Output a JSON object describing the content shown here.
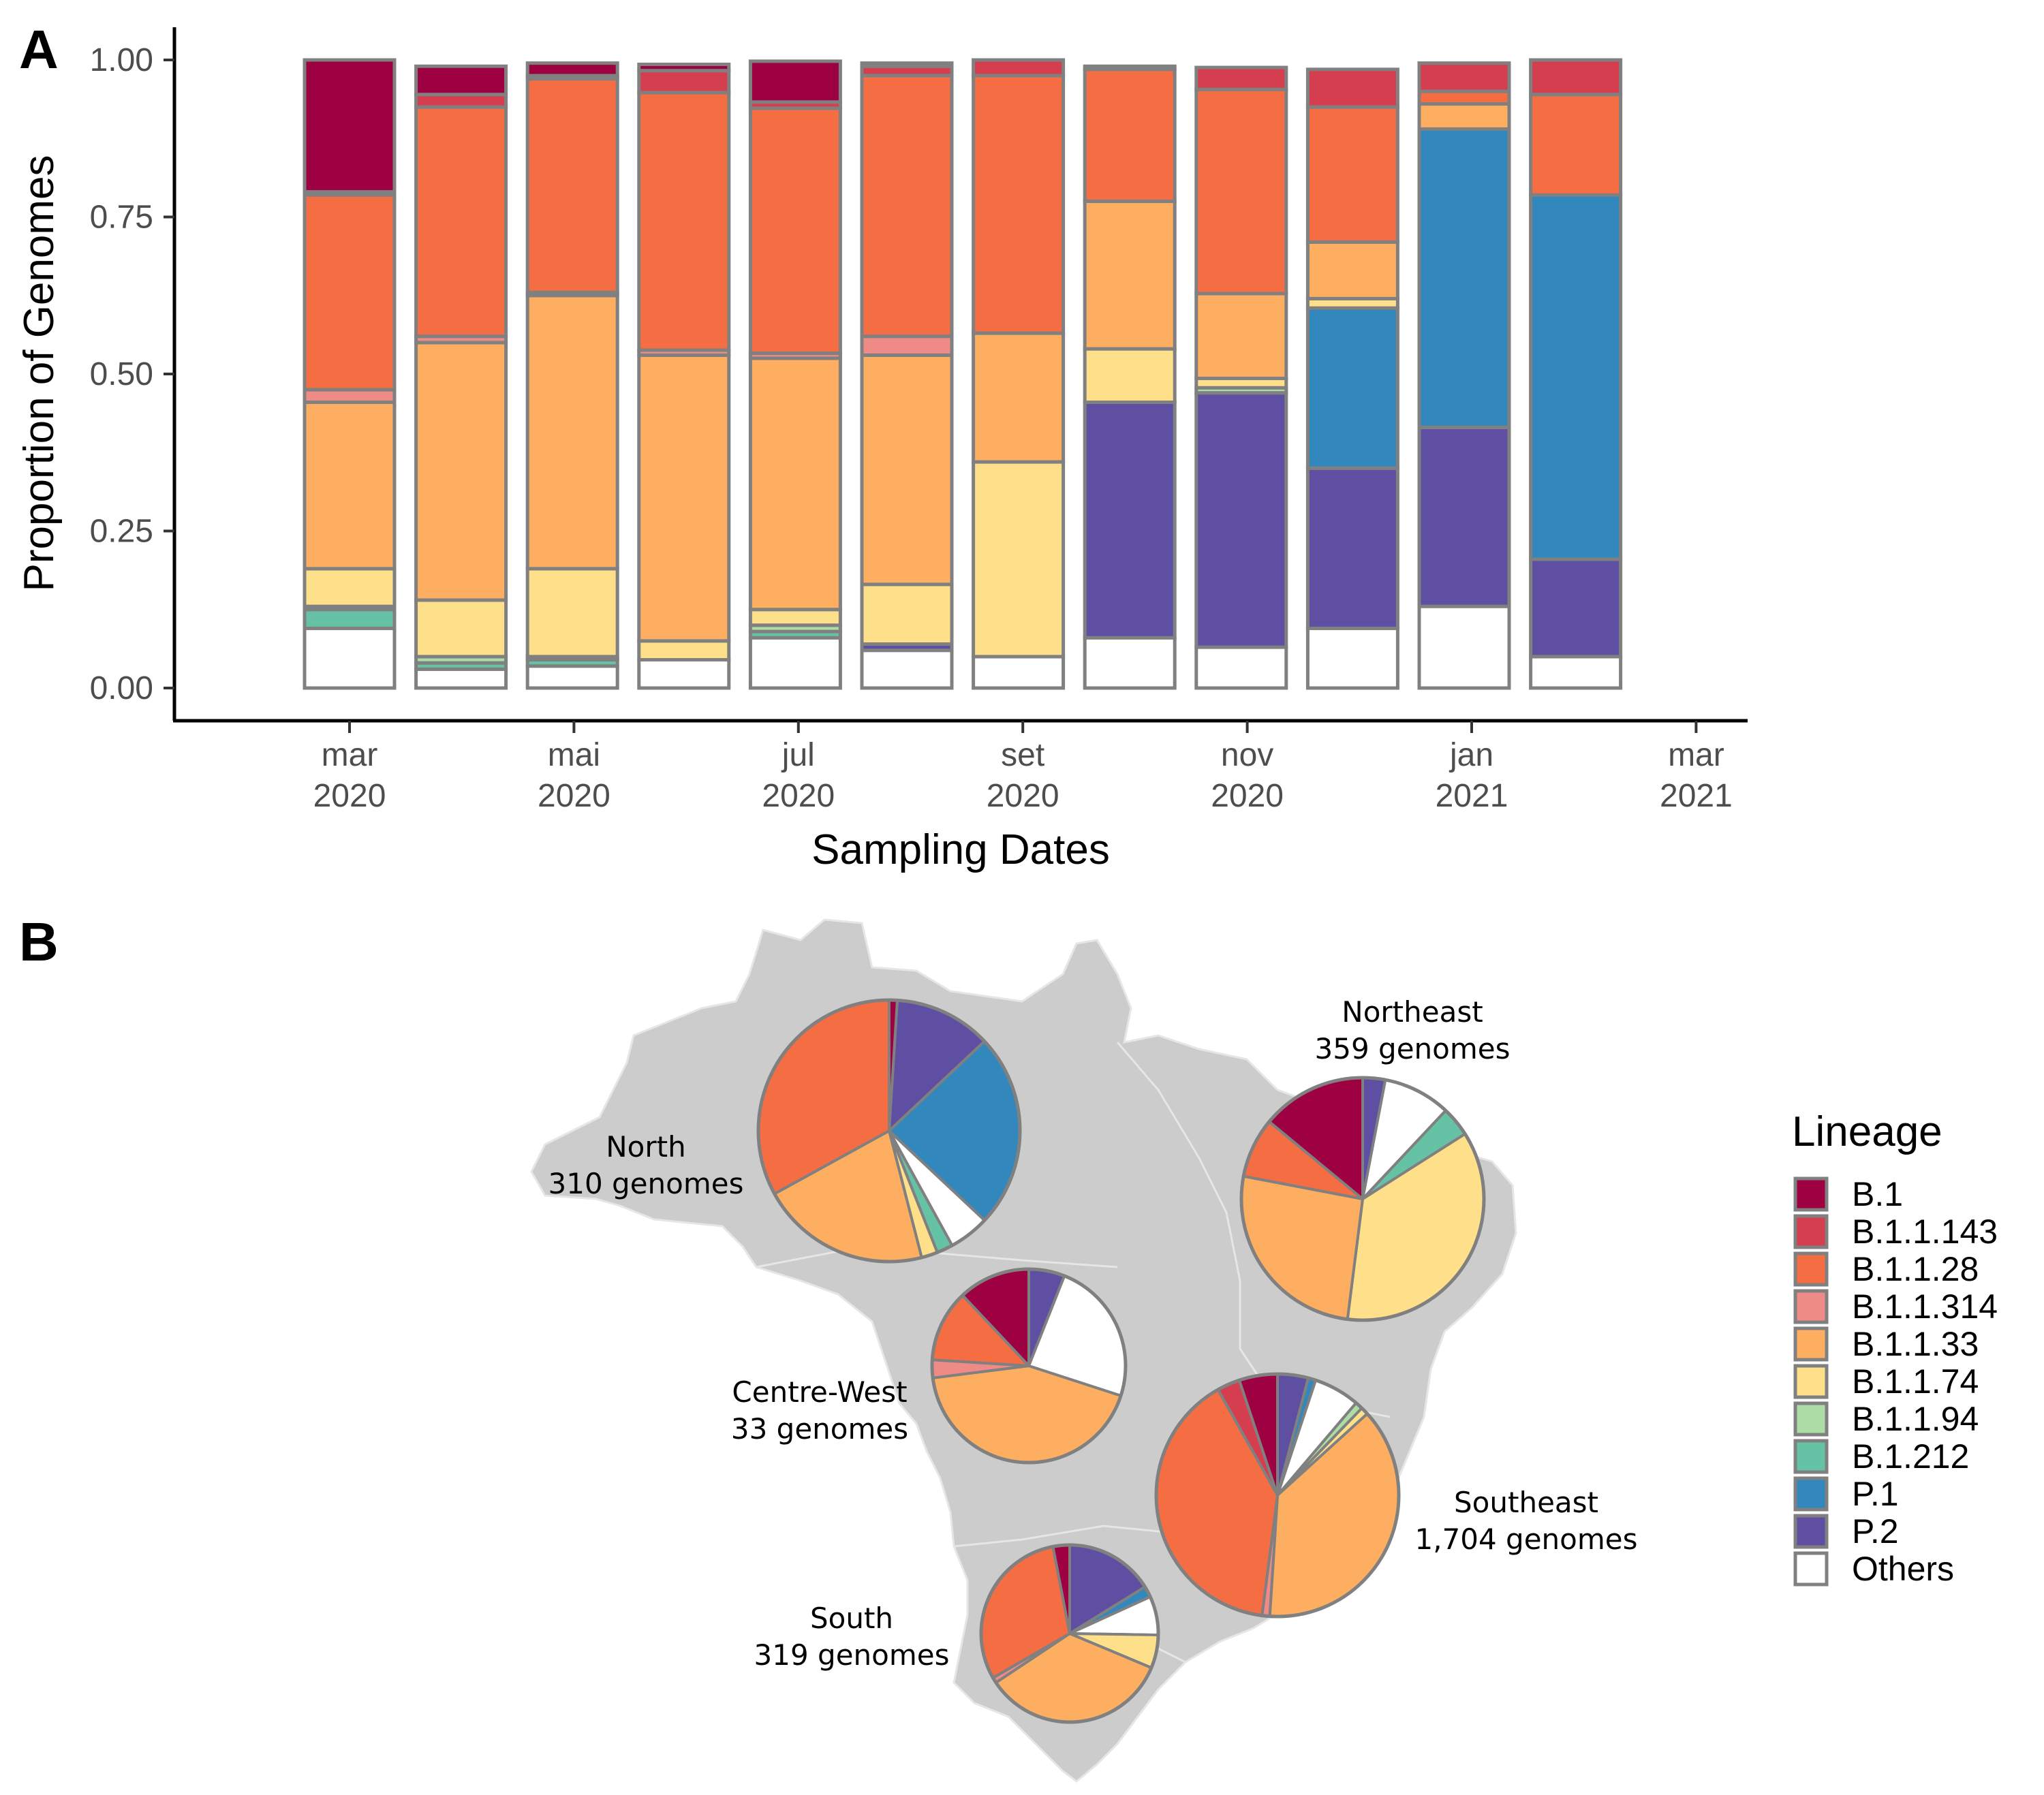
{
  "panel_a_letter": "A",
  "panel_b_letter": "B",
  "colors": {
    "B.1": "#9e0142",
    "B.1.1.143": "#d53e4f",
    "B.1.1.28": "#f46d43",
    "B.1.1.314": "#ee8b86",
    "B.1.1.33": "#fdae61",
    "B.1.1.74": "#fee08b",
    "B.1.1.94": "#abdda4",
    "B.1.212": "#66c2a5",
    "P.1": "#3288bd",
    "P.2": "#5e4fa2",
    "Others": "#ffffff",
    "outline": "#808080",
    "map_fill": "#cccccc"
  },
  "chart_data": [
    {
      "type": "bar",
      "stacked": true,
      "xlabel": "Sampling Dates",
      "ylabel": "Proportion of Genomes",
      "ylim": [
        0,
        1
      ],
      "yticks": [
        "0.00",
        "0.25",
        "0.50",
        "0.75",
        "1.00"
      ],
      "xticks": [
        {
          "month": "mar",
          "year": "2020"
        },
        {
          "month": "mai",
          "year": "2020"
        },
        {
          "month": "jul",
          "year": "2020"
        },
        {
          "month": "set",
          "year": "2020"
        },
        {
          "month": "nov",
          "year": "2020"
        },
        {
          "month": "jan",
          "year": "2021"
        },
        {
          "month": "mar",
          "year": "2021"
        }
      ],
      "categories": [
        "2020-03",
        "2020-04",
        "2020-05",
        "2020-06",
        "2020-07",
        "2020-08",
        "2020-09",
        "2020-10",
        "2020-11",
        "2020-12",
        "2021-01",
        "2021-02"
      ],
      "stack_order": [
        "Others",
        "P.2",
        "P.1",
        "B.1.212",
        "B.1.1.94",
        "B.1.1.74",
        "B.1.1.33",
        "B.1.1.314",
        "B.1.1.28",
        "B.1.1.143",
        "B.1"
      ],
      "series": [
        {
          "name": "Others",
          "values": [
            0.095,
            0.03,
            0.035,
            0.045,
            0.08,
            0.06,
            0.05,
            0.08,
            0.065,
            0.095,
            0.13,
            0.05
          ]
        },
        {
          "name": "P.2",
          "values": [
            0,
            0,
            0,
            0,
            0,
            0.01,
            0,
            0.375,
            0.405,
            0.255,
            0.285,
            0.155
          ]
        },
        {
          "name": "P.1",
          "values": [
            0,
            0,
            0,
            0,
            0,
            0,
            0,
            0,
            0,
            0.255,
            0.475,
            0.58
          ]
        },
        {
          "name": "B.1.212",
          "values": [
            0.03,
            0.01,
            0.01,
            0,
            0.01,
            0,
            0,
            0,
            0,
            0,
            0,
            0
          ]
        },
        {
          "name": "B.1.1.94",
          "values": [
            0.005,
            0.01,
            0.005,
            0,
            0.01,
            0,
            0,
            0,
            0.008,
            0,
            0,
            0
          ]
        },
        {
          "name": "B.1.1.74",
          "values": [
            0.06,
            0.09,
            0.14,
            0.03,
            0.025,
            0.095,
            0.31,
            0.085,
            0.015,
            0.015,
            0,
            0
          ]
        },
        {
          "name": "B.1.1.33",
          "values": [
            0.265,
            0.41,
            0.435,
            0.455,
            0.4,
            0.365,
            0.205,
            0.235,
            0.135,
            0.09,
            0.04,
            0
          ]
        },
        {
          "name": "B.1.1.314",
          "values": [
            0.02,
            0.01,
            0.005,
            0.008,
            0.008,
            0.03,
            0,
            0,
            0,
            0,
            0,
            0
          ]
        },
        {
          "name": "B.1.1.28",
          "values": [
            0.31,
            0.365,
            0.34,
            0.41,
            0.39,
            0.415,
            0.41,
            0.21,
            0.325,
            0.215,
            0.02,
            0.16
          ]
        },
        {
          "name": "B.1.1.143",
          "values": [
            0.005,
            0.02,
            0.005,
            0.035,
            0.01,
            0.015,
            0.025,
            0.005,
            0.035,
            0.06,
            0.045,
            0.055
          ]
        },
        {
          "name": "B.1",
          "values": [
            0.21,
            0.045,
            0.02,
            0.01,
            0.065,
            0.005,
            0,
            0,
            0,
            0,
            0,
            0
          ]
        }
      ],
      "legend": "right"
    },
    {
      "type": "pie",
      "panel": "B",
      "legend_title": "Lineage",
      "legend_items": [
        "B.1",
        "B.1.1.143",
        "B.1.1.28",
        "B.1.1.314",
        "B.1.1.33",
        "B.1.1.74",
        "B.1.1.94",
        "B.1.212",
        "P.1",
        "P.2",
        "Others"
      ],
      "pies": [
        {
          "region": "North",
          "count_label": "310 genomes",
          "slices": [
            {
              "lineage": "B.1",
              "value": 0.01
            },
            {
              "lineage": "P.2",
              "value": 0.12
            },
            {
              "lineage": "P.1",
              "value": 0.24
            },
            {
              "lineage": "Others",
              "value": 0.05
            },
            {
              "lineage": "B.1.212",
              "value": 0.02
            },
            {
              "lineage": "B.1.1.74",
              "value": 0.02
            },
            {
              "lineage": "B.1.1.33",
              "value": 0.21
            },
            {
              "lineage": "B.1.1.28",
              "value": 0.33
            }
          ]
        },
        {
          "region": "Northeast",
          "count_label": "359 genomes",
          "slices": [
            {
              "lineage": "P.2",
              "value": 0.03
            },
            {
              "lineage": "Others",
              "value": 0.09
            },
            {
              "lineage": "B.1.212",
              "value": 0.04
            },
            {
              "lineage": "B.1.1.74",
              "value": 0.36
            },
            {
              "lineage": "B.1.1.33",
              "value": 0.26
            },
            {
              "lineage": "B.1.1.28",
              "value": 0.08
            },
            {
              "lineage": "B.1",
              "value": 0.14
            }
          ]
        },
        {
          "region": "Centre-West",
          "count_label": "33 genomes",
          "slices": [
            {
              "lineage": "P.2",
              "value": 0.06
            },
            {
              "lineage": "Others",
              "value": 0.24
            },
            {
              "lineage": "B.1.1.33",
              "value": 0.43
            },
            {
              "lineage": "B.1.1.314",
              "value": 0.03
            },
            {
              "lineage": "B.1.1.28",
              "value": 0.12
            },
            {
              "lineage": "B.1",
              "value": 0.12
            }
          ]
        },
        {
          "region": "Southeast",
          "count_label": "1,704 genomes",
          "slices": [
            {
              "lineage": "P.2",
              "value": 0.04
            },
            {
              "lineage": "P.1",
              "value": 0.01
            },
            {
              "lineage": "Others",
              "value": 0.06
            },
            {
              "lineage": "B.1.1.94",
              "value": 0.01
            },
            {
              "lineage": "B.1.1.74",
              "value": 0.01
            },
            {
              "lineage": "B.1.1.33",
              "value": 0.37
            },
            {
              "lineage": "B.1.1.314",
              "value": 0.01
            },
            {
              "lineage": "B.1.1.28",
              "value": 0.39
            },
            {
              "lineage": "B.1.1.143",
              "value": 0.03
            },
            {
              "lineage": "B.1",
              "value": 0.05
            }
          ]
        },
        {
          "region": "South",
          "count_label": "319 genomes",
          "slices": [
            {
              "lineage": "P.2",
              "value": 0.16
            },
            {
              "lineage": "P.1",
              "value": 0.02
            },
            {
              "lineage": "Others",
              "value": 0.07
            },
            {
              "lineage": "B.1.1.74",
              "value": 0.06
            },
            {
              "lineage": "B.1.1.33",
              "value": 0.34
            },
            {
              "lineage": "B.1.1.314",
              "value": 0.01
            },
            {
              "lineage": "B.1.1.28",
              "value": 0.3
            },
            {
              "lineage": "B.1",
              "value": 0.03
            }
          ]
        }
      ]
    }
  ]
}
